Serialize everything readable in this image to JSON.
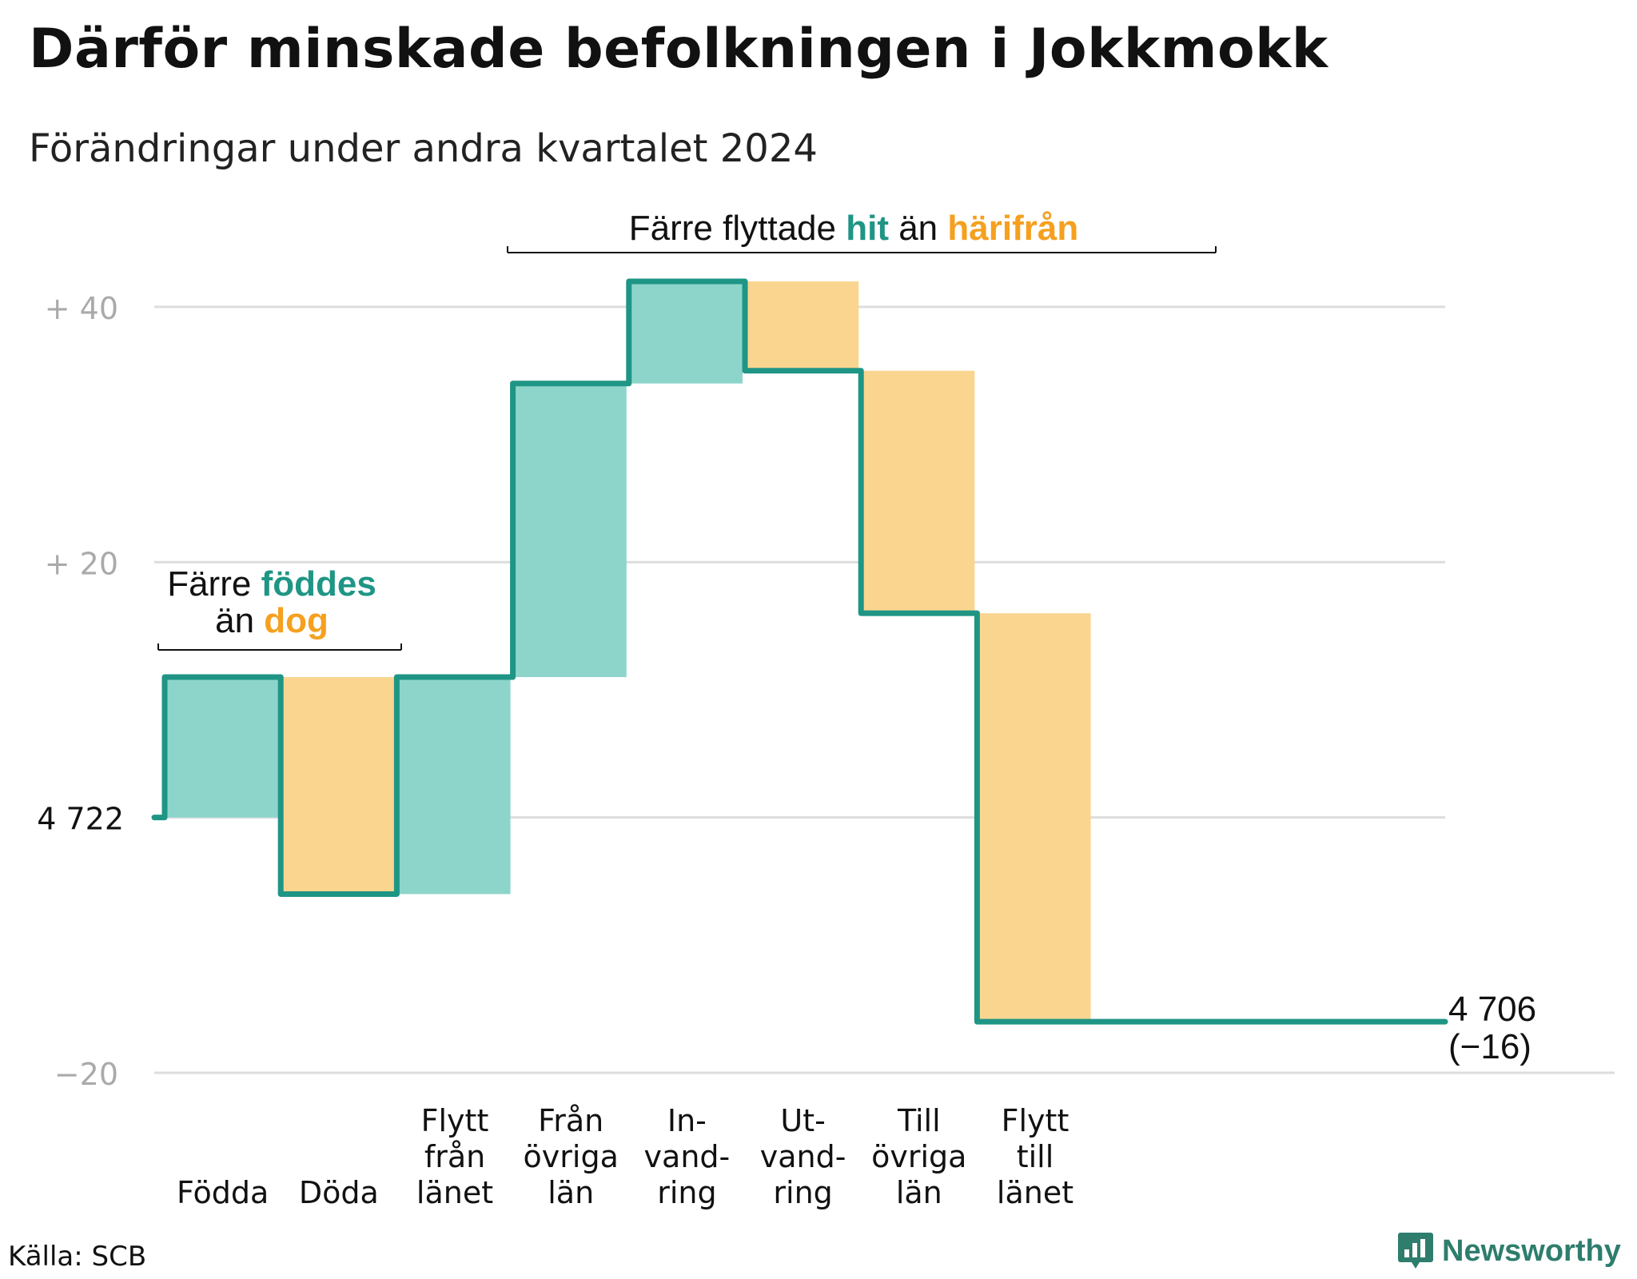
{
  "title": "Därför minskade befolkningen i Jokkmokk",
  "subtitle": "Förändringar under andra kvartalet 2024",
  "source": "Källa: SCB",
  "brand": "Newsworthy",
  "colors": {
    "inflow": "#8dd5cb",
    "outflow": "#fad590",
    "line": "#1f9585",
    "grid": "#dddddd",
    "axis_label": "#aaaaaa",
    "accent_teal": "#1f9585",
    "accent_orange": "#f5a01f"
  },
  "annotations": {
    "births": {
      "prefix": "Färre ",
      "hl1": "föddes",
      "mid": "än ",
      "hl2": "dog"
    },
    "migration": {
      "prefix": "Färre flyttade ",
      "hl1": "hit",
      "mid": " än ",
      "hl2": "härifrån"
    }
  },
  "chart_data": {
    "type": "waterfall",
    "start_value": 4722,
    "start_label": "4 722",
    "end_value": 4706,
    "end_label": "4 706",
    "end_change_label": "(−16)",
    "ylim": [
      -20,
      42
    ],
    "yticks": [
      {
        "value": 40,
        "label": "+  40"
      },
      {
        "value": 20,
        "label": "+  20"
      },
      {
        "value": 0,
        "label": "4  722"
      },
      {
        "value": -20,
        "label": "−20"
      }
    ],
    "steps": [
      {
        "label": [
          "Födda"
        ],
        "change": 11,
        "kind": "in"
      },
      {
        "label": [
          "Döda"
        ],
        "change": -17,
        "kind": "out"
      },
      {
        "label": [
          "Flytt",
          "från",
          "länet"
        ],
        "change": 17,
        "kind": "in"
      },
      {
        "label": [
          "Från",
          "övriga",
          "län"
        ],
        "change": 23,
        "kind": "in"
      },
      {
        "label": [
          "In-",
          "vand-",
          "ring"
        ],
        "change": 8,
        "kind": "in"
      },
      {
        "label": [
          "Ut-",
          "vand-",
          "ring"
        ],
        "change": -7,
        "kind": "out"
      },
      {
        "label": [
          "Till",
          "övriga",
          "län"
        ],
        "change": -19,
        "kind": "out"
      },
      {
        "label": [
          "Flytt",
          "till",
          "länet"
        ],
        "change": -32,
        "kind": "out"
      }
    ]
  }
}
